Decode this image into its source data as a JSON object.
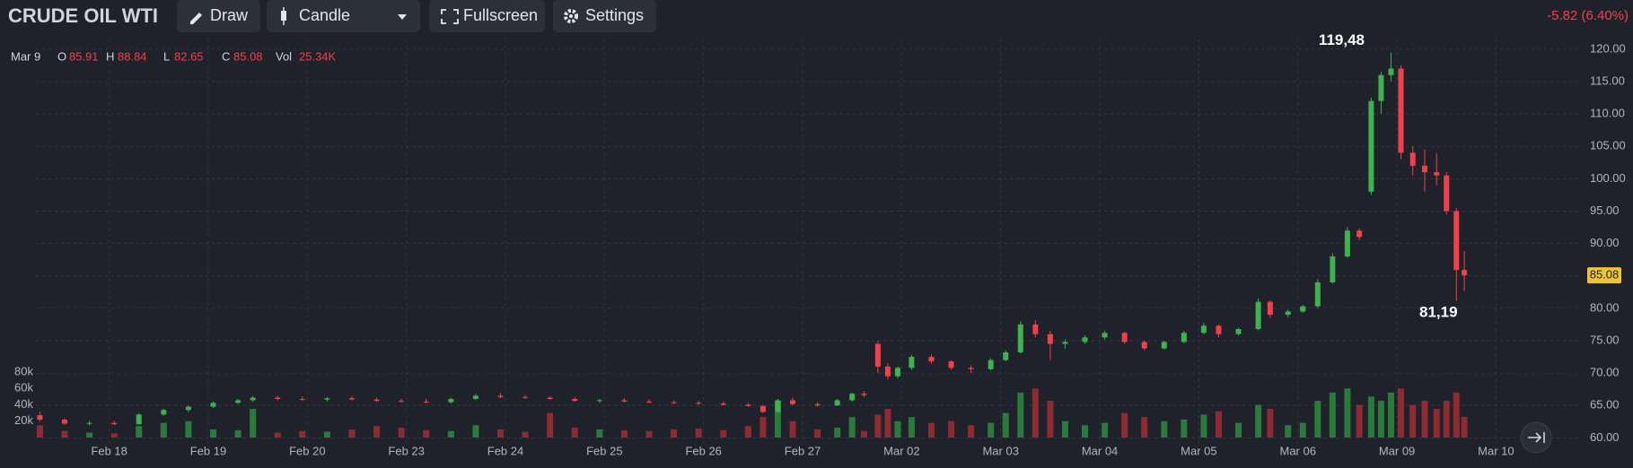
{
  "toolbar": {
    "title": "CRUDE OIL WTI",
    "buttons": [
      "Draw",
      "Candle",
      "Fullscreen",
      "Settings"
    ],
    "change": "-5.82 (6.40%)"
  },
  "chart_data": {
    "type": "candlestick",
    "legend": {
      "date": "Mar 9",
      "open": "O",
      "high": "H",
      "low": "L",
      "close": "C",
      "volume": "Vol",
      "volume_label": "25.34K"
    },
    "x": [
      -0.7,
      -0.45,
      -0.2,
      0.05,
      0.3,
      0.55,
      0.8,
      1.05,
      1.3,
      1.45,
      1.7,
      1.95,
      2.2,
      2.45,
      2.7,
      2.95,
      3.2,
      3.45,
      3.7,
      3.95,
      4.2,
      4.45,
      4.7,
      4.95,
      5.2,
      5.45,
      5.7,
      5.95,
      6.2,
      6.45,
      6.6,
      6.75,
      6.9,
      7.15,
      7.35,
      7.5,
      7.62,
      7.76,
      7.86,
      7.96,
      8.1,
      8.3,
      8.5,
      8.7,
      8.9,
      9.05,
      9.2,
      9.35,
      9.5,
      9.65,
      9.85,
      10.05,
      10.25,
      10.45,
      10.65,
      10.85,
      11.05,
      11.2,
      11.4,
      11.6,
      11.72,
      11.9,
      12.05,
      12.2,
      12.35,
      12.5,
      12.62,
      12.74,
      12.84,
      12.94,
      13.04,
      13.16,
      13.28,
      13.4,
      13.5,
      13.6,
      13.68
    ],
    "open": [
      63.5,
      62.8,
      62.2,
      62.3,
      62.1,
      63.6,
      64.3,
      64.8,
      65.4,
      65.8,
      66.2,
      66,
      65.9,
      66.1,
      65.9,
      65.7,
      65.6,
      65.5,
      66,
      66.5,
      66.3,
      66.2,
      66,
      65.7,
      65.8,
      65.6,
      65.5,
      65.4,
      65.3,
      65.1,
      64.9,
      64,
      65.8,
      65.2,
      65,
      65.8,
      66.8,
      74.5,
      71,
      69.5,
      70.8,
      72.5,
      71.8,
      70.8,
      70.6,
      72,
      73.2,
      77.5,
      76,
      74.5,
      74.8,
      75.5,
      76.2,
      74.8,
      73.8,
      74.8,
      76.2,
      77.3,
      76,
      76.8,
      81,
      79,
      79.5,
      80.3,
      84,
      88,
      92,
      98,
      112,
      116,
      117,
      104,
      102,
      101,
      100.5,
      95,
      85.91
    ],
    "high": [
      64,
      63,
      62.6,
      62.6,
      63.8,
      64.5,
      65,
      65.6,
      66,
      66.5,
      66.5,
      66.4,
      66.3,
      66.4,
      66.2,
      66,
      66,
      66.2,
      66.8,
      66.9,
      66.6,
      66.4,
      66.3,
      66,
      66.1,
      65.9,
      65.8,
      65.7,
      65.6,
      65.4,
      65.1,
      66,
      66.2,
      65.5,
      66,
      67,
      67.2,
      75,
      71.5,
      71,
      72.8,
      72.9,
      72,
      71.2,
      72.3,
      73.5,
      78,
      78.2,
      76.5,
      75.2,
      75.8,
      76.5,
      76.4,
      75,
      75,
      76.5,
      77.8,
      77.5,
      77,
      81.5,
      81.2,
      79.8,
      80.5,
      84.5,
      88.5,
      92.5,
      92.3,
      112.5,
      116.5,
      119.48,
      117.5,
      105,
      104.5,
      104,
      101,
      95.5,
      88.84
    ],
    "low": [
      62.5,
      62,
      61.9,
      62,
      62,
      63.4,
      64,
      64.6,
      65.2,
      65.5,
      65.8,
      65.7,
      65.6,
      65.8,
      65.5,
      65.4,
      65.3,
      65.3,
      65.8,
      66.1,
      66,
      65.9,
      65.6,
      65.4,
      65.5,
      65.3,
      65.2,
      65.1,
      65,
      64.8,
      63.8,
      63.9,
      65,
      64.8,
      64.9,
      65.6,
      66.3,
      70,
      69,
      69.2,
      70.5,
      71.5,
      70.5,
      70,
      70.4,
      71.8,
      73,
      75.5,
      72,
      73.8,
      74.5,
      75.2,
      74.5,
      73.5,
      73.6,
      74.6,
      76,
      75.5,
      75.8,
      76.6,
      78.5,
      78.6,
      79.3,
      80,
      83.8,
      87.8,
      90.5,
      97.5,
      110,
      115,
      103,
      100.5,
      98,
      99,
      94.5,
      81.19,
      82.65
    ],
    "close": [
      62.8,
      62.2,
      62.3,
      62.1,
      63.6,
      64.3,
      64.8,
      65.4,
      65.8,
      66.2,
      66,
      65.9,
      66.1,
      65.9,
      65.7,
      65.6,
      65.5,
      66,
      66.5,
      66.3,
      66.2,
      66,
      65.7,
      65.8,
      65.6,
      65.5,
      65.4,
      65.3,
      65.1,
      64.9,
      64,
      65.8,
      65.2,
      65,
      65.8,
      66.8,
      66.6,
      71,
      69.5,
      70.8,
      72.5,
      71.8,
      70.8,
      70.6,
      72,
      73.2,
      77.5,
      76,
      74.5,
      74.8,
      75.5,
      76.2,
      74.8,
      73.8,
      74.8,
      76.2,
      77.3,
      76,
      76.8,
      81,
      79,
      79.5,
      80.3,
      84,
      88,
      92,
      91,
      112,
      116,
      117,
      104,
      102,
      101,
      100.5,
      95,
      85.91,
      85.08
    ],
    "volume": [
      15000,
      8000,
      6000,
      5000,
      14000,
      18000,
      20000,
      10000,
      9000,
      35000,
      6000,
      8000,
      7000,
      10000,
      14000,
      12000,
      9000,
      8000,
      15000,
      10000,
      7000,
      30000,
      12000,
      10000,
      9000,
      8000,
      10000,
      11000,
      9000,
      14000,
      25000,
      45000,
      20000,
      10000,
      12000,
      25000,
      8000,
      28000,
      35000,
      20000,
      25000,
      18000,
      20000,
      15000,
      18000,
      30000,
      55000,
      60000,
      45000,
      20000,
      15000,
      18000,
      30000,
      25000,
      20000,
      22000,
      28000,
      32000,
      18000,
      40000,
      35000,
      15000,
      18000,
      45000,
      55000,
      60000,
      40000,
      50000,
      45000,
      55000,
      60000,
      40000,
      45000,
      35000,
      45000,
      55000,
      25340
    ],
    "xlim": [
      -0.74,
      14.83
    ],
    "xticks": [
      {
        "value": 0,
        "label": "Feb 18"
      },
      {
        "value": 1,
        "label": "Feb 19"
      },
      {
        "value": 2,
        "label": "Feb 20"
      },
      {
        "value": 3,
        "label": "Feb 23"
      },
      {
        "value": 4,
        "label": "Feb 24"
      },
      {
        "value": 5,
        "label": "Feb 25"
      },
      {
        "value": 6,
        "label": "Feb 26"
      },
      {
        "value": 7,
        "label": "Feb 27"
      },
      {
        "value": 8,
        "label": "Mar 02"
      },
      {
        "value": 9,
        "label": "Mar 03"
      },
      {
        "value": 10,
        "label": "Mar 04"
      },
      {
        "value": 11,
        "label": "Mar 05"
      },
      {
        "value": 12,
        "label": "Mar 06"
      },
      {
        "value": 13,
        "label": "Mar 09"
      },
      {
        "value": 14,
        "label": "Mar 10"
      }
    ],
    "ylim": [
      58.8,
      121.5
    ],
    "yticks": [
      {
        "value": 60,
        "label": "60.00"
      },
      {
        "value": 65,
        "label": "65.00"
      },
      {
        "value": 70,
        "label": "70.00"
      },
      {
        "value": 75,
        "label": "75.00"
      },
      {
        "value": 80,
        "label": "80.00"
      },
      {
        "value": 85,
        "label": "85.00"
      },
      {
        "value": 90,
        "label": "90.00"
      },
      {
        "value": 95,
        "label": "95.00"
      },
      {
        "value": 100,
        "label": "100.00"
      },
      {
        "value": 105,
        "label": "105.00"
      },
      {
        "value": 110,
        "label": "110.00"
      },
      {
        "value": 115,
        "label": "115.00"
      },
      {
        "value": 120,
        "label": "120.00"
      }
    ],
    "volume_lim": [
      0,
      80000
    ],
    "volume_ticks": [
      {
        "value": 20000,
        "label": "20k"
      },
      {
        "value": 40000,
        "label": "40k"
      },
      {
        "value": 60000,
        "label": "60k"
      },
      {
        "value": 80000,
        "label": "80k"
      }
    ],
    "annotations": [
      {
        "label": "119,48",
        "value": 119.48,
        "x": 12.94
      },
      {
        "label": "81,19",
        "value": 81.19,
        "x": 13.6
      }
    ],
    "grid": true,
    "up_color": "#3fb24f",
    "down_color": "#f0414b",
    "volume_up_color": "#2a7a3b",
    "volume_down_color": "#8e2b32",
    "last_price_color": "#f0c23c"
  }
}
